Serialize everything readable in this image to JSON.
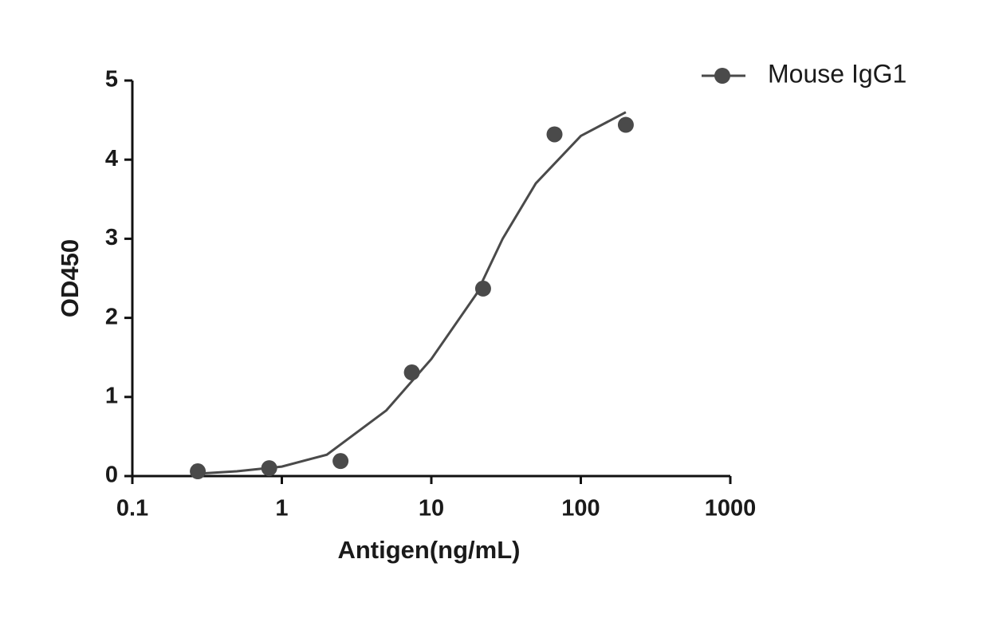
{
  "chart_data": {
    "type": "scatter",
    "xlabel": "Antigen(ng/mL)",
    "ylabel": "OD450",
    "xscale": "log",
    "xlim": [
      0.1,
      1000
    ],
    "ylim": [
      0,
      5
    ],
    "xticks": [
      0.1,
      1,
      10,
      100,
      1000
    ],
    "yticks": [
      0,
      1,
      2,
      3,
      4,
      5
    ],
    "legend": "upper right",
    "series": [
      {
        "name": "Mouse IgG1",
        "color": "#4a4a4a",
        "x": [
          0.274,
          0.823,
          2.47,
          7.41,
          22.2,
          66.7,
          200
        ],
        "values": [
          0.06,
          0.1,
          0.19,
          1.31,
          2.37,
          4.32,
          4.44
        ],
        "curve_x": [
          0.27,
          0.5,
          1,
          2,
          5,
          10,
          20,
          30,
          50,
          100,
          200
        ],
        "curve_values": [
          0.03,
          0.06,
          0.12,
          0.27,
          0.83,
          1.48,
          2.3,
          3.0,
          3.7,
          4.3,
          4.6
        ]
      }
    ]
  }
}
